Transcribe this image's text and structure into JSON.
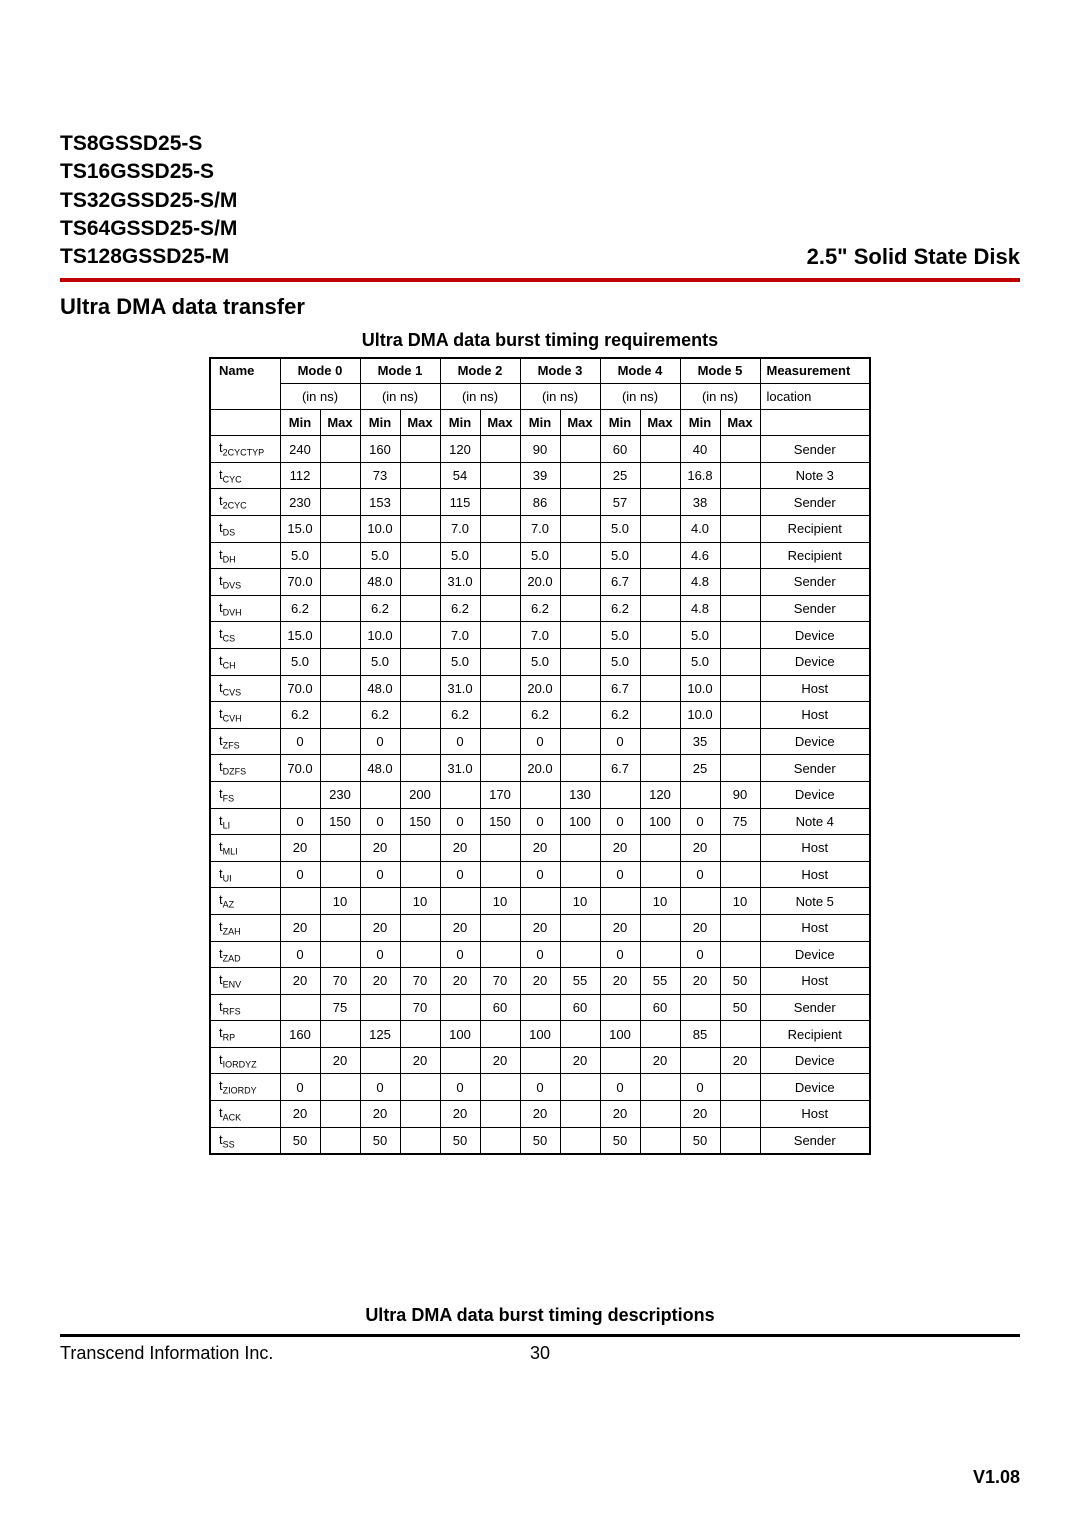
{
  "header": {
    "models": [
      "TS8GSSD25-S",
      "TS16GSSD25-S",
      "TS32GSSD25-S/M",
      "TS64GSSD25-S/M",
      "TS128GSSD25-M"
    ],
    "product_title": "2.5\" Solid State Disk"
  },
  "section_title": "Ultra DMA data transfer",
  "table": {
    "caption": "Ultra DMA data burst timing requirements",
    "modes": [
      "Mode 0",
      "Mode 1",
      "Mode 2",
      "Mode 3",
      "Mode 4",
      "Mode 5"
    ],
    "unit": "(in ns)",
    "minmax": [
      "Min",
      "Max"
    ],
    "name_header": "Name",
    "meas_header_top": "Measurement",
    "meas_header_bottom": "location",
    "rows": [
      {
        "name_base": "t",
        "name_sub": "2CYCTYP",
        "m": [
          [
            "240",
            ""
          ],
          [
            "160",
            ""
          ],
          [
            "120",
            ""
          ],
          [
            "90",
            ""
          ],
          [
            "60",
            ""
          ],
          [
            "40",
            ""
          ]
        ],
        "meas": "Sender"
      },
      {
        "name_base": "t",
        "name_sub": "CYC",
        "m": [
          [
            "112",
            ""
          ],
          [
            "73",
            ""
          ],
          [
            "54",
            ""
          ],
          [
            "39",
            ""
          ],
          [
            "25",
            ""
          ],
          [
            "16.8",
            ""
          ]
        ],
        "meas": "Note 3"
      },
      {
        "name_base": "t",
        "name_sub": "2CYC",
        "m": [
          [
            "230",
            ""
          ],
          [
            "153",
            ""
          ],
          [
            "115",
            ""
          ],
          [
            "86",
            ""
          ],
          [
            "57",
            ""
          ],
          [
            "38",
            ""
          ]
        ],
        "meas": "Sender"
      },
      {
        "name_base": "t",
        "name_sub": "DS",
        "m": [
          [
            "15.0",
            ""
          ],
          [
            "10.0",
            ""
          ],
          [
            "7.0",
            ""
          ],
          [
            "7.0",
            ""
          ],
          [
            "5.0",
            ""
          ],
          [
            "4.0",
            ""
          ]
        ],
        "meas": "Recipient"
      },
      {
        "name_base": "t",
        "name_sub": "DH",
        "m": [
          [
            "5.0",
            ""
          ],
          [
            "5.0",
            ""
          ],
          [
            "5.0",
            ""
          ],
          [
            "5.0",
            ""
          ],
          [
            "5.0",
            ""
          ],
          [
            "4.6",
            ""
          ]
        ],
        "meas": "Recipient"
      },
      {
        "name_base": "t",
        "name_sub": "DVS",
        "m": [
          [
            "70.0",
            ""
          ],
          [
            "48.0",
            ""
          ],
          [
            "31.0",
            ""
          ],
          [
            "20.0",
            ""
          ],
          [
            "6.7",
            ""
          ],
          [
            "4.8",
            ""
          ]
        ],
        "meas": "Sender"
      },
      {
        "name_base": "t",
        "name_sub": "DVH",
        "m": [
          [
            "6.2",
            ""
          ],
          [
            "6.2",
            ""
          ],
          [
            "6.2",
            ""
          ],
          [
            "6.2",
            ""
          ],
          [
            "6.2",
            ""
          ],
          [
            "4.8",
            ""
          ]
        ],
        "meas": "Sender"
      },
      {
        "name_base": "t",
        "name_sub": "CS",
        "m": [
          [
            "15.0",
            ""
          ],
          [
            "10.0",
            ""
          ],
          [
            "7.0",
            ""
          ],
          [
            "7.0",
            ""
          ],
          [
            "5.0",
            ""
          ],
          [
            "5.0",
            ""
          ]
        ],
        "meas": "Device"
      },
      {
        "name_base": "t",
        "name_sub": "CH",
        "m": [
          [
            "5.0",
            ""
          ],
          [
            "5.0",
            ""
          ],
          [
            "5.0",
            ""
          ],
          [
            "5.0",
            ""
          ],
          [
            "5.0",
            ""
          ],
          [
            "5.0",
            ""
          ]
        ],
        "meas": "Device"
      },
      {
        "name_base": "t",
        "name_sub": "CVS",
        "m": [
          [
            "70.0",
            ""
          ],
          [
            "48.0",
            ""
          ],
          [
            "31.0",
            ""
          ],
          [
            "20.0",
            ""
          ],
          [
            "6.7",
            ""
          ],
          [
            "10.0",
            ""
          ]
        ],
        "meas": "Host"
      },
      {
        "name_base": "t",
        "name_sub": "CVH",
        "m": [
          [
            "6.2",
            ""
          ],
          [
            "6.2",
            ""
          ],
          [
            "6.2",
            ""
          ],
          [
            "6.2",
            ""
          ],
          [
            "6.2",
            ""
          ],
          [
            "10.0",
            ""
          ]
        ],
        "meas": "Host"
      },
      {
        "name_base": "t",
        "name_sub": "ZFS",
        "m": [
          [
            "0",
            ""
          ],
          [
            "0",
            ""
          ],
          [
            "0",
            ""
          ],
          [
            "0",
            ""
          ],
          [
            "0",
            ""
          ],
          [
            "35",
            ""
          ]
        ],
        "meas": "Device"
      },
      {
        "name_base": "t",
        "name_sub": "DZFS",
        "m": [
          [
            "70.0",
            ""
          ],
          [
            "48.0",
            ""
          ],
          [
            "31.0",
            ""
          ],
          [
            "20.0",
            ""
          ],
          [
            "6.7",
            ""
          ],
          [
            "25",
            ""
          ]
        ],
        "meas": "Sender"
      },
      {
        "name_base": "t",
        "name_sub": "FS",
        "m": [
          [
            "",
            "230"
          ],
          [
            "",
            "200"
          ],
          [
            "",
            "170"
          ],
          [
            "",
            "130"
          ],
          [
            "",
            "120"
          ],
          [
            "",
            "90"
          ]
        ],
        "meas": "Device"
      },
      {
        "name_base": "t",
        "name_sub": "LI",
        "m": [
          [
            "0",
            "150"
          ],
          [
            "0",
            "150"
          ],
          [
            "0",
            "150"
          ],
          [
            "0",
            "100"
          ],
          [
            "0",
            "100"
          ],
          [
            "0",
            "75"
          ]
        ],
        "meas": "Note 4"
      },
      {
        "name_base": "t",
        "name_sub": "MLI",
        "m": [
          [
            "20",
            ""
          ],
          [
            "20",
            ""
          ],
          [
            "20",
            ""
          ],
          [
            "20",
            ""
          ],
          [
            "20",
            ""
          ],
          [
            "20",
            ""
          ]
        ],
        "meas": "Host"
      },
      {
        "name_base": "t",
        "name_sub": "UI",
        "m": [
          [
            "0",
            ""
          ],
          [
            "0",
            ""
          ],
          [
            "0",
            ""
          ],
          [
            "0",
            ""
          ],
          [
            "0",
            ""
          ],
          [
            "0",
            ""
          ]
        ],
        "meas": "Host"
      },
      {
        "name_base": "t",
        "name_sub": "AZ",
        "m": [
          [
            "",
            "10"
          ],
          [
            "",
            "10"
          ],
          [
            "",
            "10"
          ],
          [
            "",
            "10"
          ],
          [
            "",
            "10"
          ],
          [
            "",
            "10"
          ]
        ],
        "meas": "Note 5"
      },
      {
        "name_base": "t",
        "name_sub": "ZAH",
        "m": [
          [
            "20",
            ""
          ],
          [
            "20",
            ""
          ],
          [
            "20",
            ""
          ],
          [
            "20",
            ""
          ],
          [
            "20",
            ""
          ],
          [
            "20",
            ""
          ]
        ],
        "meas": "Host"
      },
      {
        "name_base": "t",
        "name_sub": "ZAD",
        "m": [
          [
            "0",
            ""
          ],
          [
            "0",
            ""
          ],
          [
            "0",
            ""
          ],
          [
            "0",
            ""
          ],
          [
            "0",
            ""
          ],
          [
            "0",
            ""
          ]
        ],
        "meas": "Device"
      },
      {
        "name_base": "t",
        "name_sub": "ENV",
        "m": [
          [
            "20",
            "70"
          ],
          [
            "20",
            "70"
          ],
          [
            "20",
            "70"
          ],
          [
            "20",
            "55"
          ],
          [
            "20",
            "55"
          ],
          [
            "20",
            "50"
          ]
        ],
        "meas": "Host"
      },
      {
        "name_base": "t",
        "name_sub": "RFS",
        "m": [
          [
            "",
            "75"
          ],
          [
            "",
            "70"
          ],
          [
            "",
            "60"
          ],
          [
            "",
            "60"
          ],
          [
            "",
            "60"
          ],
          [
            "",
            "50"
          ]
        ],
        "meas": "Sender"
      },
      {
        "name_base": "t",
        "name_sub": "RP",
        "m": [
          [
            "160",
            ""
          ],
          [
            "125",
            ""
          ],
          [
            "100",
            ""
          ],
          [
            "100",
            ""
          ],
          [
            "100",
            ""
          ],
          [
            "85",
            ""
          ]
        ],
        "meas": "Recipient"
      },
      {
        "name_base": "t",
        "name_sub": "IORDYZ",
        "m": [
          [
            "",
            "20"
          ],
          [
            "",
            "20"
          ],
          [
            "",
            "20"
          ],
          [
            "",
            "20"
          ],
          [
            "",
            "20"
          ],
          [
            "",
            "20"
          ]
        ],
        "meas": "Device"
      },
      {
        "name_base": "t",
        "name_sub": "ZIORDY",
        "m": [
          [
            "0",
            ""
          ],
          [
            "0",
            ""
          ],
          [
            "0",
            ""
          ],
          [
            "0",
            ""
          ],
          [
            "0",
            ""
          ],
          [
            "0",
            ""
          ]
        ],
        "meas": "Device"
      },
      {
        "name_base": "t",
        "name_sub": "ACK",
        "m": [
          [
            "20",
            ""
          ],
          [
            "20",
            ""
          ],
          [
            "20",
            ""
          ],
          [
            "20",
            ""
          ],
          [
            "20",
            ""
          ],
          [
            "20",
            ""
          ]
        ],
        "meas": "Host"
      },
      {
        "name_base": "t",
        "name_sub": "SS",
        "m": [
          [
            "50",
            ""
          ],
          [
            "50",
            ""
          ],
          [
            "50",
            ""
          ],
          [
            "50",
            ""
          ],
          [
            "50",
            ""
          ],
          [
            "50",
            ""
          ]
        ],
        "meas": "Sender"
      }
    ]
  },
  "second_caption": "Ultra DMA data burst timing descriptions",
  "footer": {
    "company": "Transcend Information Inc.",
    "page": "30",
    "version": "V1.08"
  },
  "colors": {
    "rule_red": "#c00000",
    "text": "#000000",
    "bg": "#ffffff"
  }
}
